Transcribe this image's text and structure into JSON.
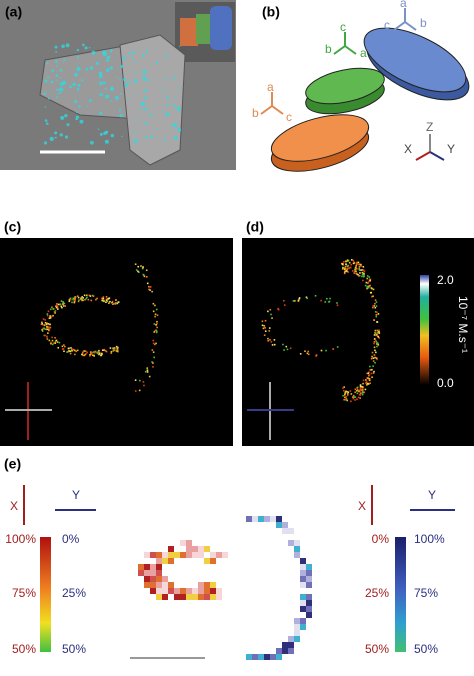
{
  "panel_labels": [
    "(a)",
    "(b)",
    "(c)",
    "(d)",
    "(e)"
  ],
  "b_axes": {
    "blue": [
      "a",
      "b",
      "c"
    ],
    "green": [
      "c",
      "b",
      "a"
    ],
    "orange": [
      "a",
      "b",
      "c"
    ],
    "lab": [
      "Z",
      "X",
      "Y"
    ]
  },
  "d_colorbar": {
    "max": "2.0",
    "unit": "10⁻⁷ M.s⁻¹",
    "min": "0.0"
  },
  "e_left": {
    "x_label": "X",
    "y_label": "Y",
    "x_ticks": [
      "100%",
      "75%",
      "50%"
    ],
    "y_ticks": [
      "0%",
      "25%",
      "50%"
    ]
  },
  "e_right": {
    "x_label": "X",
    "y_label": "Y",
    "x_ticks": [
      "0%",
      "25%",
      "50%"
    ],
    "y_ticks": [
      "100%",
      "75%",
      "50%"
    ]
  }
}
